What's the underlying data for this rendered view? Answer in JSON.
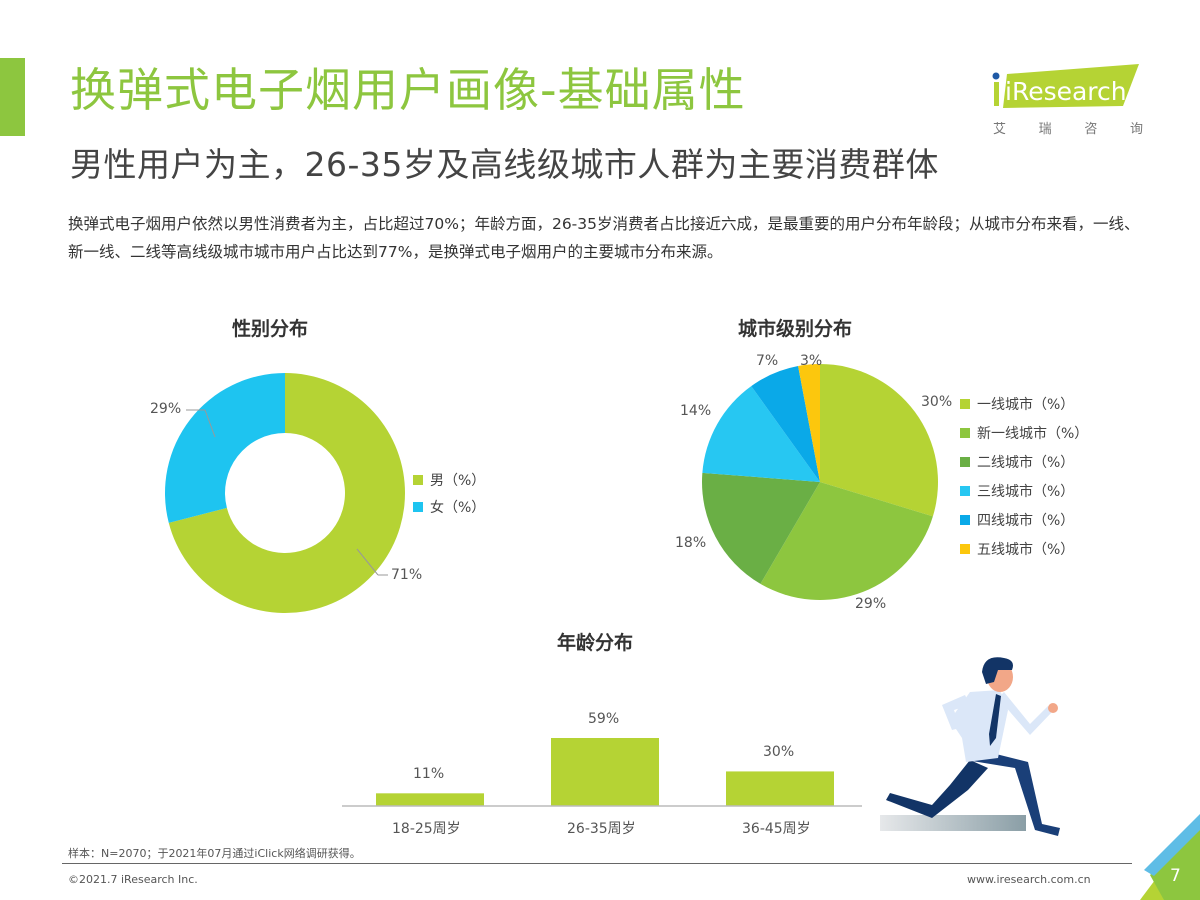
{
  "header": {
    "title": "换弹式电子烟用户画像-基础属性",
    "subtitle": "男性用户为主，26-35岁及高线级城市人群为主要消费群体",
    "logo": {
      "brand": "iResearch",
      "chars": [
        "艾",
        "瑞",
        "咨",
        "询"
      ]
    }
  },
  "description": "换弹式电子烟用户依然以男性消费者为主，占比超过70%；年龄方面，26-35岁消费者占比接近六成，是最重要的用户分布年龄段；从城市分布来看，一线、新一线、二线等高线级城市城市用户占比达到77%，是换弹式电子烟用户的主要城市分布来源。",
  "colors": {
    "accent": "#8dc63f",
    "male": "#b5d334",
    "female": "#1ec4f0",
    "tier1": "#b5d334",
    "new_tier1": "#8dc63f",
    "tier2": "#6aaf45",
    "tier3": "#27c7f2",
    "tier4": "#0aa9e8",
    "tier5": "#fcc70d",
    "bar": "#b5d334"
  },
  "chart_data": [
    {
      "type": "pie",
      "variant": "donut",
      "title": "性别分布",
      "categories": [
        "男（%）",
        "女（%）"
      ],
      "values": [
        71,
        29
      ],
      "labels": [
        "71%",
        "29%"
      ],
      "legend_position": "right"
    },
    {
      "type": "pie",
      "title": "城市级别分布",
      "categories": [
        "一线城市（%）",
        "新一线城市（%）",
        "二线城市（%）",
        "三线城市（%）",
        "四线城市（%）",
        "五线城市（%）"
      ],
      "values": [
        30,
        29,
        18,
        14,
        7,
        3
      ],
      "labels": [
        "30%",
        "29%",
        "18%",
        "14%",
        "7%",
        "3%"
      ],
      "legend_position": "right"
    },
    {
      "type": "bar",
      "title": "年龄分布",
      "categories": [
        "18-25周岁",
        "26-35周岁",
        "36-45周岁"
      ],
      "values": [
        11,
        59,
        30
      ],
      "labels": [
        "11%",
        "59%",
        "30%"
      ],
      "xlabel": "",
      "ylabel": "",
      "grid": false
    }
  ],
  "footer": {
    "note": "样本：N=2070；于2021年07月通过iClick网络调研获得。",
    "copyright": "©2021.7 iResearch Inc.",
    "website": "www.iresearch.com.cn",
    "page": "7"
  }
}
